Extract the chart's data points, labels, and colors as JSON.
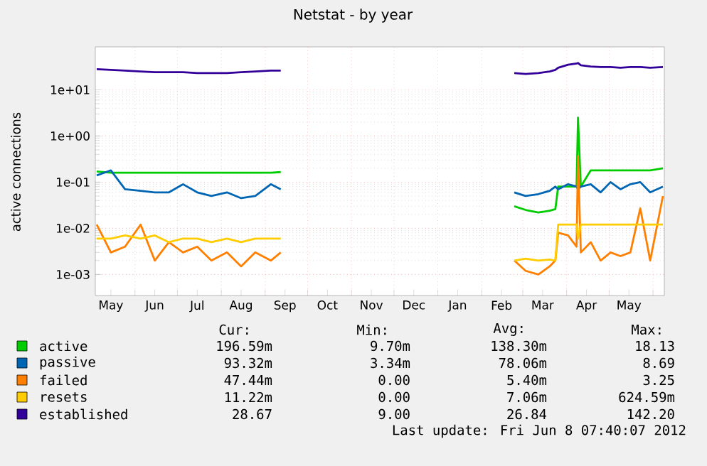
{
  "chart_data": {
    "type": "line",
    "title": "Netstat - by year",
    "ylabel": "active connections",
    "log": "y",
    "grid": true,
    "legend": "bottom",
    "xlim": [
      "2011-05-04",
      "2012-06-09"
    ],
    "xticks": [
      {
        "value": "2011-05-15",
        "label": "May"
      },
      {
        "value": "2011-06-15",
        "label": "Jun"
      },
      {
        "value": "2011-07-15",
        "label": "Jul"
      },
      {
        "value": "2011-08-15",
        "label": "Aug"
      },
      {
        "value": "2011-09-15",
        "label": "Sep"
      },
      {
        "value": "2011-10-15",
        "label": "Oct"
      },
      {
        "value": "2011-11-15",
        "label": "Nov"
      },
      {
        "value": "2011-12-15",
        "label": "Dec"
      },
      {
        "value": "2012-01-15",
        "label": "Jan"
      },
      {
        "value": "2012-02-15",
        "label": "Feb"
      },
      {
        "value": "2012-03-15",
        "label": "Mar"
      },
      {
        "value": "2012-04-15",
        "label": "Apr"
      },
      {
        "value": "2012-05-15",
        "label": "May"
      },
      {
        "value": "2011-06-01",
        "label": null
      },
      {
        "value": "2011-07-01",
        "label": null
      },
      {
        "value": "2011-08-01",
        "label": null
      },
      {
        "value": "2011-09-01",
        "label": null
      },
      {
        "value": "2011-10-01",
        "label": null
      },
      {
        "value": "2011-11-01",
        "label": null
      },
      {
        "value": "2011-12-01",
        "label": null
      },
      {
        "value": "2012-01-01",
        "label": null
      },
      {
        "value": "2012-02-01",
        "label": null
      },
      {
        "value": "2012-03-01",
        "label": null
      },
      {
        "value": "2012-04-01",
        "label": null
      },
      {
        "value": "2012-05-01",
        "label": null
      },
      {
        "value": "2012-06-01",
        "label": null
      }
    ],
    "ylim": [
      0.00035,
      85
    ],
    "yticks": [
      {
        "value": 0.001,
        "label": "1e-03"
      },
      {
        "value": 0.01,
        "label": "1e-02"
      },
      {
        "value": 0.1,
        "label": "1e-01"
      },
      {
        "value": 1,
        "label": "1e+00"
      },
      {
        "value": 10,
        "label": "1e+01"
      }
    ],
    "x": [
      "2011-05-05",
      "2011-05-15",
      "2011-05-25",
      "2011-06-05",
      "2011-06-15",
      "2011-06-25",
      "2011-07-05",
      "2011-07-15",
      "2011-07-25",
      "2011-08-05",
      "2011-08-15",
      "2011-08-25",
      "2011-09-05",
      "2011-09-12",
      "2011-11-15",
      "2012-02-24",
      "2012-03-03",
      "2012-03-12",
      "2012-03-20",
      "2012-03-24",
      "2012-03-26",
      "2012-04-02",
      "2012-04-08",
      "2012-04-09",
      "2012-04-11",
      "2012-04-18",
      "2012-04-25",
      "2012-05-02",
      "2012-05-09",
      "2012-05-16",
      "2012-05-23",
      "2012-05-30",
      "2012-06-08"
    ],
    "series": [
      {
        "name": "active",
        "color": "#00cc00",
        "values": [
          0.17,
          0.16,
          0.16,
          0.16,
          0.16,
          0.16,
          0.16,
          0.16,
          0.16,
          0.16,
          0.16,
          0.16,
          0.16,
          0.165,
          null,
          0.03,
          0.025,
          0.022,
          0.024,
          0.026,
          0.08,
          0.08,
          0.08,
          2.5,
          0.08,
          0.18,
          0.18,
          0.18,
          0.18,
          0.18,
          0.18,
          0.18,
          0.2
        ]
      },
      {
        "name": "passive",
        "color": "#0066b3",
        "values": [
          0.14,
          0.18,
          0.07,
          0.065,
          0.06,
          0.06,
          0.09,
          0.06,
          0.05,
          0.06,
          0.045,
          0.05,
          0.09,
          0.07,
          null,
          0.06,
          0.05,
          0.055,
          0.065,
          0.08,
          0.07,
          0.09,
          0.08,
          0.07,
          0.08,
          0.09,
          0.06,
          0.1,
          0.07,
          0.09,
          0.1,
          0.06,
          0.08
        ]
      },
      {
        "name": "failed",
        "color": "#ff8000",
        "values": [
          0.012,
          0.003,
          0.004,
          0.012,
          0.002,
          0.005,
          0.003,
          0.004,
          0.002,
          0.003,
          0.0015,
          0.003,
          0.002,
          0.003,
          null,
          0.002,
          0.0012,
          0.001,
          0.0015,
          0.002,
          0.008,
          0.007,
          0.004,
          0.36,
          0.003,
          0.005,
          0.002,
          0.003,
          0.0025,
          0.003,
          0.027,
          0.002,
          0.05
        ]
      },
      {
        "name": "resets",
        "color": "#ffcc00",
        "values": [
          0.006,
          0.006,
          0.007,
          0.006,
          0.007,
          0.005,
          0.006,
          0.006,
          0.005,
          0.006,
          0.005,
          0.006,
          0.006,
          0.006,
          null,
          0.002,
          0.0022,
          0.002,
          0.0021,
          0.002,
          0.012,
          0.012,
          0.012,
          0.006,
          0.012,
          0.012,
          0.012,
          0.012,
          0.012,
          0.012,
          0.012,
          0.012,
          0.012
        ]
      },
      {
        "name": "established",
        "color": "#330099",
        "values": [
          28,
          27,
          26,
          25,
          24,
          24,
          24,
          23,
          23,
          23,
          24,
          25,
          26,
          26,
          null,
          23,
          22,
          23,
          25,
          27,
          30,
          35,
          37,
          38,
          34,
          32,
          31,
          31,
          30,
          31,
          31,
          30,
          31
        ]
      }
    ],
    "annotations": [
      "Cur:",
      "Min:",
      "Avg:",
      "Max:",
      "196.59m",
      "9.70m",
      "138.30m",
      "18.13",
      "93.32m",
      "3.34m",
      "78.06m",
      "8.69",
      "47.44m",
      "0.00",
      "5.40m",
      "3.25",
      "11.22m",
      "0.00",
      "7.06m",
      "624.59m",
      "28.67",
      "9.00",
      "26.84",
      "142.20",
      "Last update: Fri Jun 8 07:40:07 2012"
    ]
  }
}
